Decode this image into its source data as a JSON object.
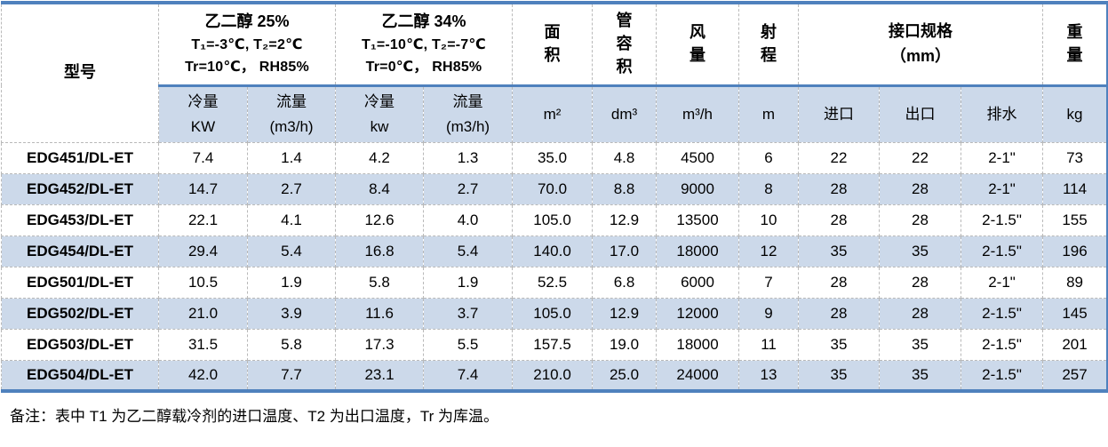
{
  "colors": {
    "accent": "#4f81bd",
    "band": "#ccd9ea",
    "gridline": "#b9b9b9"
  },
  "table": {
    "header": {
      "model_label": "型号",
      "glycol25": {
        "title": "乙二醇 25%",
        "temps": "T₁=-3℃, T₂=2℃",
        "condition": "Tr=10℃， RH85%",
        "cooling": {
          "label": "冷量",
          "unit": "KW"
        },
        "flow": {
          "label": "流量",
          "unit": "(m3/h)"
        }
      },
      "glycol34": {
        "title": "乙二醇 34%",
        "temps": "T₁=-10℃, T₂=-7℃",
        "condition": "Tr=0℃， RH85%",
        "cooling": {
          "label": "冷量",
          "unit": "kw"
        },
        "flow": {
          "label": "流量",
          "unit": "(m3/h)"
        }
      },
      "area": {
        "label": "面积",
        "unit": "m²"
      },
      "tube_volume": {
        "label": "管容积",
        "unit": "dm³"
      },
      "air_flow": {
        "label": "风量",
        "unit": "m³/h"
      },
      "throw_range": {
        "label": "射程",
        "unit": "m"
      },
      "connections": {
        "label": "接口规格",
        "unit_line": "（mm）",
        "inlet": "进口",
        "outlet": "出口",
        "drain": "排水"
      },
      "weight": {
        "label": "重量",
        "unit": "kg"
      }
    },
    "rows": [
      {
        "model": "EDG451/DL-ET",
        "values": [
          "7.4",
          "1.4",
          "4.2",
          "1.3",
          "35.0",
          "4.8",
          "4500",
          "6",
          "22",
          "22",
          "2-1\"",
          "73"
        ]
      },
      {
        "model": "EDG452/DL-ET",
        "values": [
          "14.7",
          "2.7",
          "8.4",
          "2.7",
          "70.0",
          "8.8",
          "9000",
          "8",
          "28",
          "28",
          "2-1\"",
          "114"
        ]
      },
      {
        "model": "EDG453/DL-ET",
        "values": [
          "22.1",
          "4.1",
          "12.6",
          "4.0",
          "105.0",
          "12.9",
          "13500",
          "10",
          "28",
          "28",
          "2-1.5\"",
          "155"
        ]
      },
      {
        "model": "EDG454/DL-ET",
        "values": [
          "29.4",
          "5.4",
          "16.8",
          "5.4",
          "140.0",
          "17.0",
          "18000",
          "12",
          "35",
          "35",
          "2-1.5\"",
          "196"
        ]
      },
      {
        "model": "EDG501/DL-ET",
        "values": [
          "10.5",
          "1.9",
          "5.8",
          "1.9",
          "52.5",
          "6.8",
          "6000",
          "7",
          "28",
          "28",
          "2-1\"",
          "89"
        ]
      },
      {
        "model": "EDG502/DL-ET",
        "values": [
          "21.0",
          "3.9",
          "11.6",
          "3.7",
          "105.0",
          "12.9",
          "12000",
          "9",
          "28",
          "28",
          "2-1.5\"",
          "145"
        ]
      },
      {
        "model": "EDG503/DL-ET",
        "values": [
          "31.5",
          "5.8",
          "17.3",
          "5.5",
          "157.5",
          "19.0",
          "18000",
          "11",
          "35",
          "35",
          "2-1.5\"",
          "201"
        ]
      },
      {
        "model": "EDG504/DL-ET",
        "values": [
          "42.0",
          "7.7",
          "23.1",
          "7.4",
          "210.0",
          "25.0",
          "24000",
          "13",
          "35",
          "35",
          "2-1.5\"",
          "257"
        ]
      }
    ]
  },
  "note": "备注：表中 T1 为乙二醇载冷剂的进口温度、T2 为出口温度，Tr 为库温。"
}
